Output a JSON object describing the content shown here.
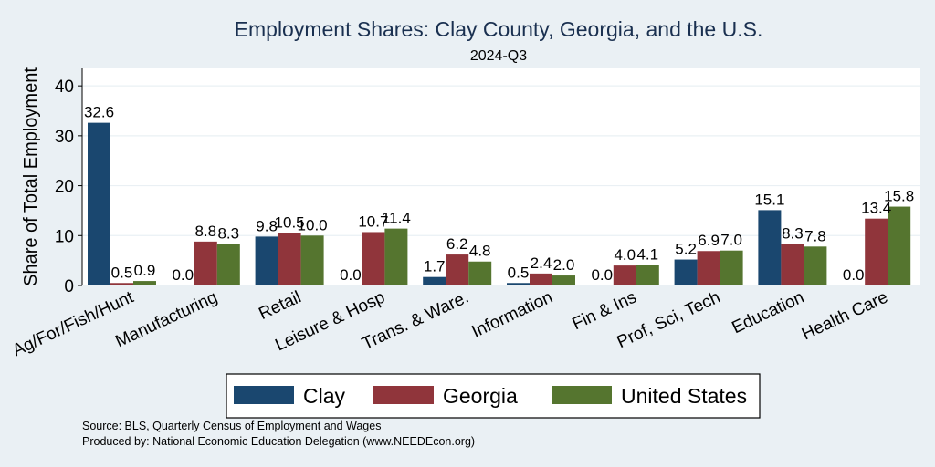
{
  "chart_data": {
    "type": "bar",
    "title": "Employment Shares: Clay County, Georgia, and the U.S.",
    "subtitle": "2024-Q3",
    "ylabel": "Share of Total Employment",
    "xlabel": "",
    "ylim": [
      0,
      43.5
    ],
    "yticks": [
      0,
      10,
      20,
      30,
      40
    ],
    "grid": true,
    "legend_position": "bottom",
    "categories": [
      "Ag/For/Fish/Hunt",
      "Manufacturing",
      "Retail",
      "Leisure & Hosp",
      "Trans. & Ware.",
      "Information",
      "Fin & Ins",
      "Prof, Sci, Tech",
      "Education",
      "Health Care"
    ],
    "series": [
      {
        "name": "Clay",
        "color": "#1a476f",
        "values": [
          32.6,
          0.0,
          9.8,
          0.0,
          1.7,
          0.5,
          0.0,
          5.2,
          15.1,
          0.0
        ],
        "labels": [
          "32.6",
          "0.0",
          "9.8",
          "0.0",
          "1.7",
          "0.5",
          "0.0",
          "5.2",
          "15.1",
          "0.0"
        ]
      },
      {
        "name": "Georgia",
        "color": "#90353b",
        "values": [
          0.5,
          8.8,
          10.5,
          10.7,
          6.2,
          2.4,
          4.0,
          6.9,
          8.3,
          13.4
        ],
        "labels": [
          "0.5",
          "8.8",
          "10.5",
          "10.7",
          "6.2",
          "2.4",
          "4.0",
          "6.9",
          "8.3",
          "13.4"
        ]
      },
      {
        "name": "United States",
        "color": "#55752f",
        "values": [
          0.9,
          8.3,
          10.0,
          11.4,
          4.8,
          2.0,
          4.1,
          7.0,
          7.8,
          15.8
        ],
        "labels": [
          "0.9",
          "8.3",
          "10.0",
          "11.4",
          "4.8",
          "2.0",
          "4.1",
          "7.0",
          "7.8",
          "15.8"
        ]
      }
    ]
  },
  "source_lines": [
    "Source: BLS, Quarterly Census of Employment and Wages",
    "Produced by: National Economic Education Delegation (www.NEEDEcon.org)"
  ]
}
